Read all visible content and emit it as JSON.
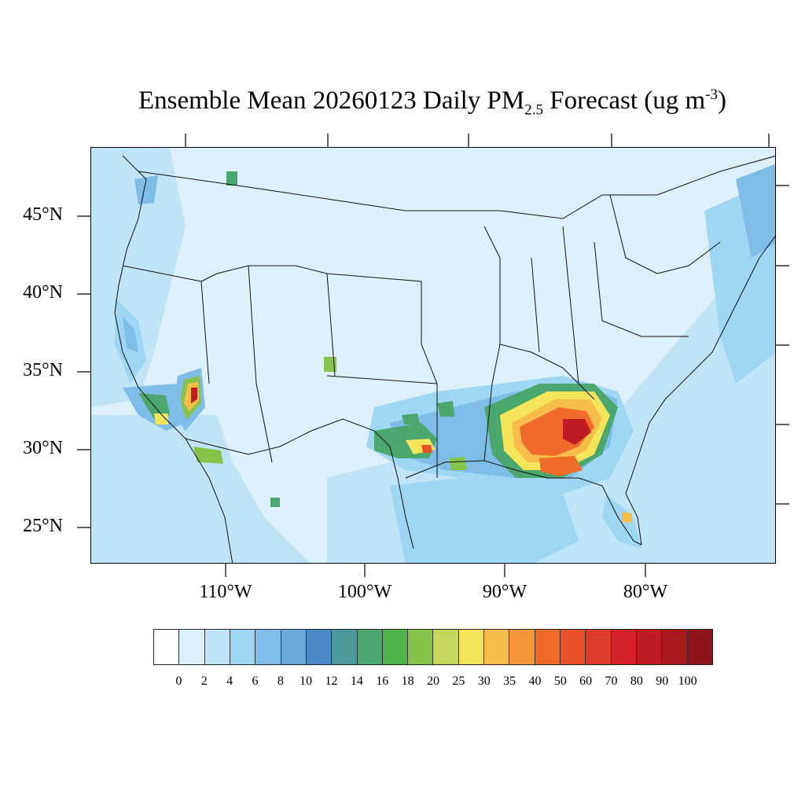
{
  "title": {
    "text": "Ensemble Mean 20260123 Daily PM",
    "subscript": "2.5",
    "middle": " Forecast (ug m",
    "superscript": "-3",
    "end": ")"
  },
  "lat_labels": [
    "45°N",
    "40°N",
    "35°N",
    "30°N",
    "25°N"
  ],
  "lon_labels": [
    "110°W",
    "100°W",
    "90°W",
    "80°W"
  ],
  "colorbar": {
    "labels": [
      "0",
      "2",
      "4",
      "6",
      "8",
      "10",
      "12",
      "14",
      "16",
      "18",
      "20",
      "25",
      "30",
      "35",
      "40",
      "50",
      "60",
      "70",
      "80",
      "90",
      "100"
    ],
    "colors": [
      "#ffffff",
      "#dcf0fb",
      "#bfe3f7",
      "#9ed6f3",
      "#80bde6",
      "#6aa9dc",
      "#4b8ac8",
      "#4a9a9c",
      "#4aa86e",
      "#4cb44a",
      "#86c34b",
      "#c4d65a",
      "#f4e45a",
      "#f7bd4a",
      "#f5963a",
      "#f06a2a",
      "#e8502a",
      "#de3a2a",
      "#d42028",
      "#bf1b22",
      "#a8181d",
      "#8e1419"
    ]
  },
  "map": {
    "background_level": "2-4",
    "hotspots": [
      {
        "region": "Southeast US (GA/AL/FL Panhandle)",
        "level": "60-100"
      },
      {
        "region": "Arizona (Phoenix area)",
        "level": "60-100"
      },
      {
        "region": "East Texas",
        "level": "30-50"
      },
      {
        "region": "Southern California",
        "level": "16-30"
      },
      {
        "region": "South Florida",
        "level": "30-50"
      }
    ]
  }
}
